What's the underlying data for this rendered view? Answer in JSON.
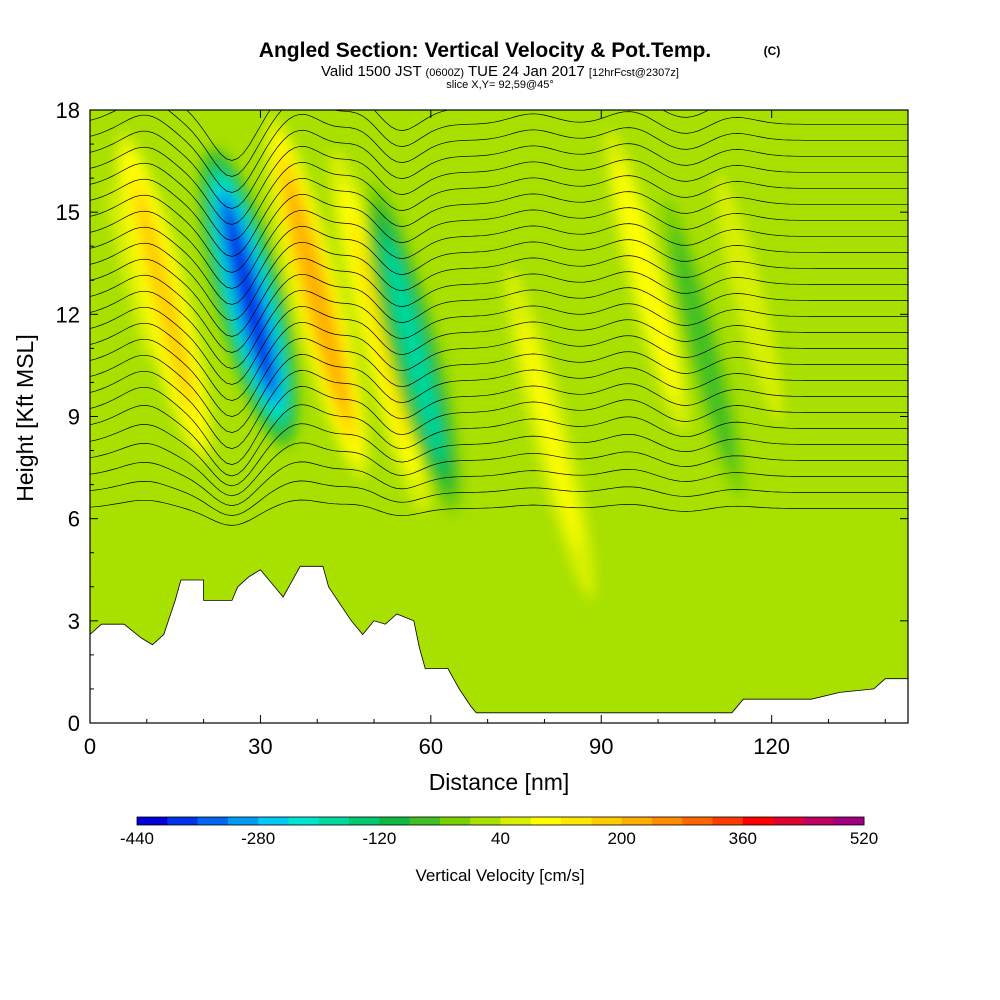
{
  "header": {
    "title": "Angled Section: Vertical Velocity & Pot.Temp.",
    "title_tag": "(C)",
    "valid_prefix": "Valid 1500 JST",
    "valid_zulu": "(0600Z)",
    "valid_date": "TUE 24 Jan 2017",
    "valid_fcst": "[12hrFcst@2307z]",
    "slice": "slice X,Y= 92,59@45°"
  },
  "chart_data": {
    "type": "heatmap",
    "xlabel": "Distance [nm]",
    "ylabel": "Height [Kft MSL]",
    "xlim": [
      0,
      144
    ],
    "ylim": [
      0,
      18
    ],
    "x_ticks": [
      "0",
      "30",
      "60",
      "90",
      "120"
    ],
    "x_tick_values": [
      0,
      30,
      60,
      90,
      120
    ],
    "y_ticks": [
      "0",
      "3",
      "6",
      "9",
      "12",
      "15",
      "18"
    ],
    "y_tick_values": [
      0,
      3,
      6,
      9,
      12,
      15,
      18
    ],
    "contour_field": "Potential temperature (°C), thin black contours",
    "colorbar": {
      "label": "Vertical Velocity [cm/s]",
      "min": -440,
      "max": 520,
      "step": 40,
      "tick_labels": [
        "-440",
        "-280",
        "-120",
        "40",
        "200",
        "360",
        "520"
      ],
      "tick_values": [
        -440,
        -280,
        -120,
        40,
        200,
        360,
        520
      ],
      "colors": [
        "#0000d8",
        "#0033e8",
        "#0066f0",
        "#0099f4",
        "#00c8f8",
        "#00e4d0",
        "#00d8a0",
        "#00c870",
        "#10b840",
        "#40c020",
        "#78d000",
        "#a8e000",
        "#d8f000",
        "#ffff00",
        "#ffe600",
        "#ffcc00",
        "#ffae00",
        "#ff8c00",
        "#ff6600",
        "#ff3c00",
        "#ff0000",
        "#e00030",
        "#c00060",
        "#a00080",
        "#7a0090"
      ]
    },
    "terrain_kft": [
      [
        0,
        2.6
      ],
      [
        2,
        2.9
      ],
      [
        6,
        2.9
      ],
      [
        9,
        2.5
      ],
      [
        11,
        2.3
      ],
      [
        13,
        2.6
      ],
      [
        14,
        3.1
      ],
      [
        15,
        3.6
      ],
      [
        16,
        4.2
      ],
      [
        20,
        4.2
      ],
      [
        20,
        3.6
      ],
      [
        25,
        3.6
      ],
      [
        26,
        4.0
      ],
      [
        28,
        4.3
      ],
      [
        30,
        4.5
      ],
      [
        32,
        4.1
      ],
      [
        34,
        3.7
      ],
      [
        36,
        4.3
      ],
      [
        37,
        4.6
      ],
      [
        41,
        4.6
      ],
      [
        42,
        4.0
      ],
      [
        44,
        3.5
      ],
      [
        46,
        3.0
      ],
      [
        48,
        2.6
      ],
      [
        50,
        3.0
      ],
      [
        52,
        2.9
      ],
      [
        54,
        3.2
      ],
      [
        57,
        3.0
      ],
      [
        58,
        2.2
      ],
      [
        59,
        1.6
      ],
      [
        63,
        1.6
      ],
      [
        65,
        1.0
      ],
      [
        67,
        0.5
      ],
      [
        68,
        0.3
      ],
      [
        113,
        0.3
      ],
      [
        115,
        0.7
      ],
      [
        127,
        0.7
      ],
      [
        132,
        0.9
      ],
      [
        138,
        1.0
      ],
      [
        140,
        1.3
      ],
      [
        144,
        1.3
      ]
    ],
    "vertical_velocity_cells_cm_s": [
      {
        "x": 4,
        "y_min": 9,
        "y_max": 17.5,
        "w": 40,
        "note": "weak updraft"
      },
      {
        "x": 10,
        "y_min": 7.5,
        "y_max": 17.5,
        "w": 180
      },
      {
        "x": 25,
        "y_min": 8,
        "y_max": 17,
        "w": -400
      },
      {
        "x": 37,
        "y_min": 7,
        "y_max": 18,
        "w": 200
      },
      {
        "x": 48,
        "y_min": 6,
        "y_max": 17,
        "w": 120
      },
      {
        "x": 54,
        "y_min": 6,
        "y_max": 16,
        "w": -200
      },
      {
        "x": 78,
        "y_min": 3,
        "y_max": 14,
        "w": 80
      },
      {
        "x": 95,
        "y_min": 8,
        "y_max": 18,
        "w": 100
      },
      {
        "x": 105,
        "y_min": 6,
        "y_max": 16,
        "w": -80
      },
      {
        "x": 113,
        "y_min": 8,
        "y_max": 17,
        "w": 60
      }
    ]
  },
  "colors": {
    "frame": "#000000",
    "background": "#ffffff",
    "terrain": "#ffffff",
    "contour": "#000000"
  }
}
